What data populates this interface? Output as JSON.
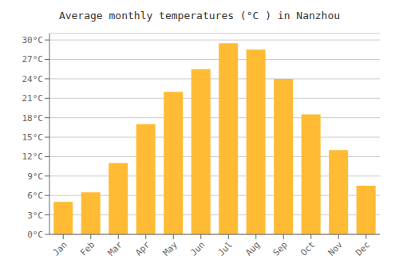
{
  "chart_data": {
    "type": "bar",
    "title": "Average monthly temperatures (°C ) in Nanzhou",
    "categories": [
      "Jan",
      "Feb",
      "Mar",
      "Apr",
      "May",
      "Jun",
      "Jul",
      "Aug",
      "Sep",
      "Oct",
      "Nov",
      "Dec"
    ],
    "values": [
      5.0,
      6.5,
      11.0,
      17.0,
      22.0,
      25.5,
      29.5,
      28.5,
      24.0,
      18.5,
      13.0,
      7.5
    ],
    "color": "#FFBB33",
    "ylim": [
      0,
      31
    ],
    "yticks": [
      {
        "value": 0,
        "label": "0°C"
      },
      {
        "value": 3,
        "label": "3°C"
      },
      {
        "value": 6,
        "label": "6°C"
      },
      {
        "value": 9,
        "label": "9°C"
      },
      {
        "value": 12,
        "label": "12°C"
      },
      {
        "value": 15,
        "label": "15°C"
      },
      {
        "value": 18,
        "label": "18°C"
      },
      {
        "value": 21,
        "label": "21°C"
      },
      {
        "value": 24,
        "label": "24°C"
      },
      {
        "value": 27,
        "label": "27°C"
      },
      {
        "value": 30,
        "label": "30°C"
      }
    ],
    "grid": true
  }
}
